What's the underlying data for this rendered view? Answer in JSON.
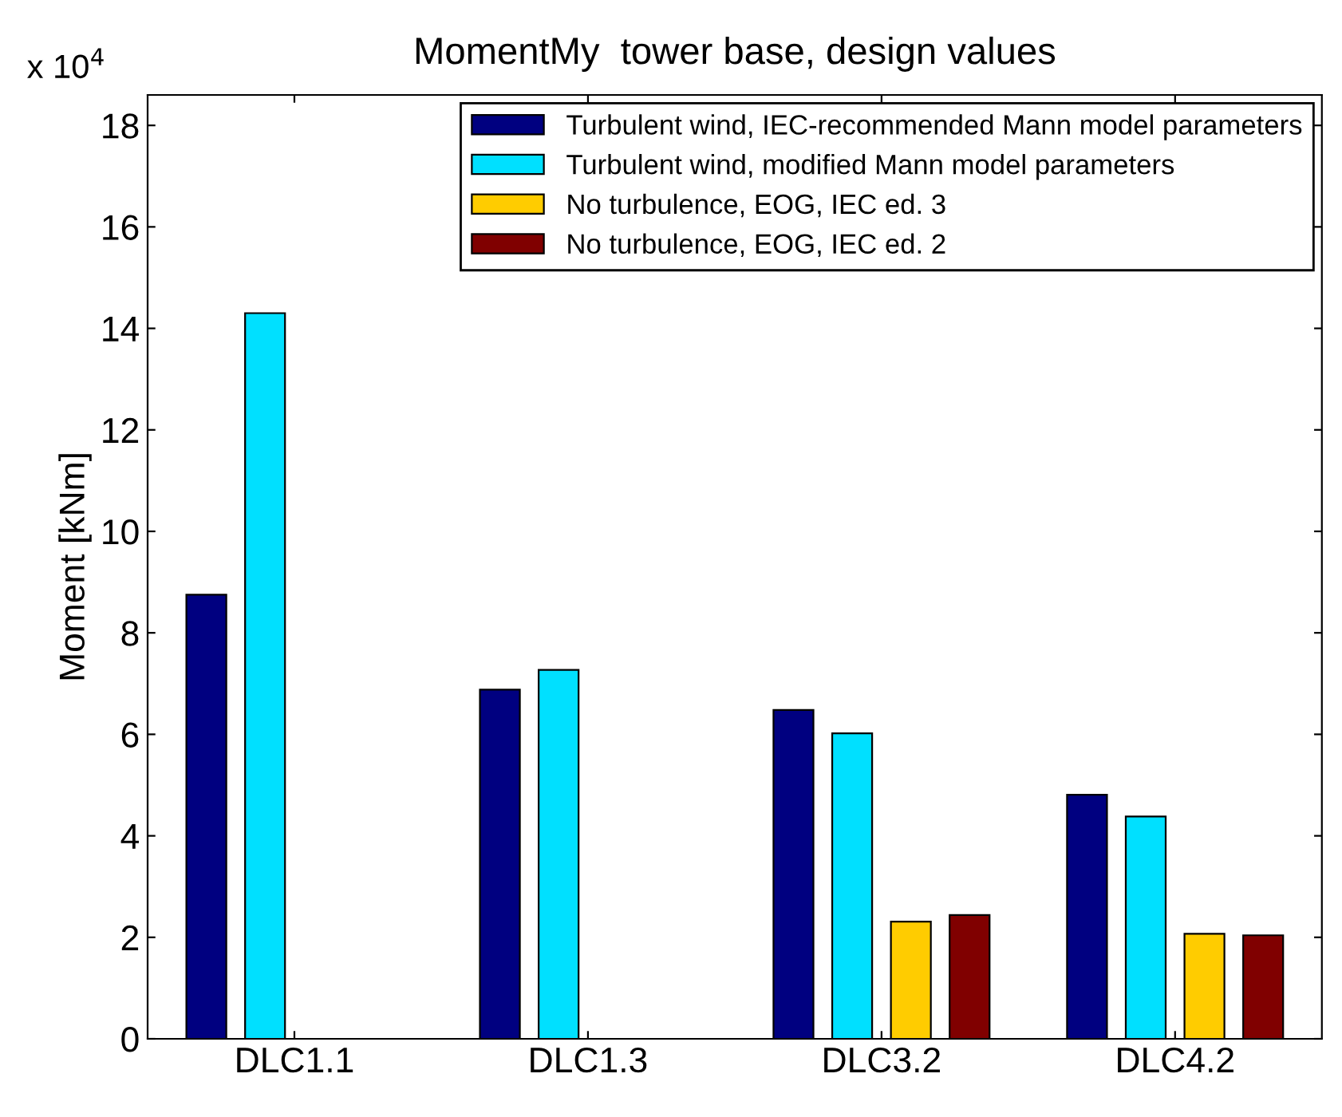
{
  "chart_data": {
    "type": "bar",
    "title": "MomentMy  tower base, design values",
    "ylabel": "Moment [kNm]",
    "annotations": [
      "x 10$^{4}$"
    ],
    "categories": [
      "DLC1.1",
      "DLC1.3",
      "DLC3.2",
      "DLC4.2"
    ],
    "series": [
      {
        "name": "Turbulent wind, IEC-recommended Mann model parameters",
        "color": "#000080",
        "values": [
          8.75,
          6.88,
          6.48,
          4.81
        ]
      },
      {
        "name": "Turbulent wind, modified Mann model parameters",
        "color": "#00e0ff",
        "values": [
          14.3,
          7.27,
          6.02,
          4.38
        ]
      },
      {
        "name": "No turbulence, EOG, IEC ed. 3",
        "color": "#ffcc00",
        "values": [
          null,
          null,
          2.31,
          2.07
        ]
      },
      {
        "name": "No turbulence, EOG, IEC ed. 2",
        "color": "#800000",
        "values": [
          null,
          null,
          2.44,
          2.04
        ]
      }
    ],
    "ylim": [
      0,
      18.6
    ],
    "yticks": [
      0,
      2,
      4,
      6,
      8,
      10,
      12,
      14,
      16,
      18
    ],
    "legend": "top right",
    "grid": false
  }
}
